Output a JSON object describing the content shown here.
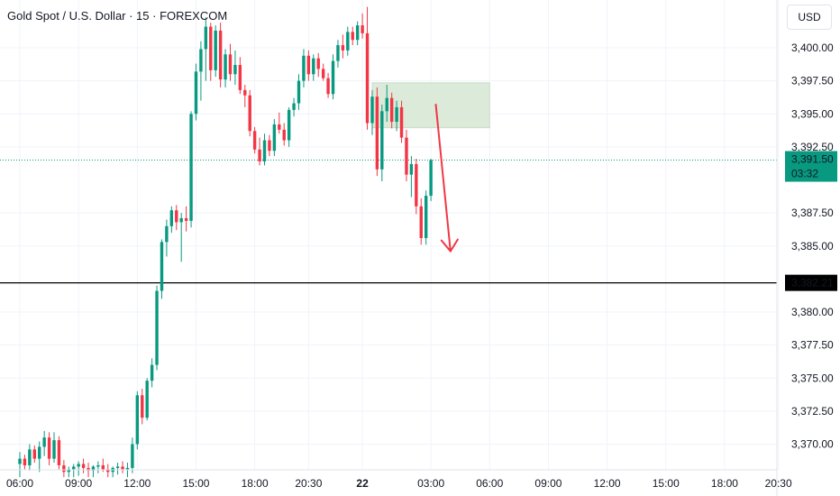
{
  "header": {
    "title": "Gold Spot / U.S. Dollar · 15 · FOREXCOM",
    "currency": "USD"
  },
  "chart_data": {
    "type": "candlestick",
    "title": "Gold Spot / U.S. Dollar · 15 · FOREXCOM",
    "ylim": [
      3367.5,
      3402.3
    ],
    "y_ticks": [
      "3,400.00",
      "3,397.50",
      "3,395.00",
      "3,392.50",
      "3,387.50",
      "3,385.00",
      "3,380.00",
      "3,377.50",
      "3,375.00",
      "3,372.50",
      "3,370.00"
    ],
    "y_tick_values": [
      3400,
      3397.5,
      3395,
      3392.5,
      3387.5,
      3385,
      3380,
      3377.5,
      3375,
      3372.5,
      3370
    ],
    "x_ticks": [
      "06:00",
      "09:00",
      "12:00",
      "15:00",
      "18:00",
      "20:30",
      "22",
      "03:00",
      "06:00",
      "09:00",
      "12:00",
      "15:00",
      "18:00",
      "20:30"
    ],
    "x_tick_slots": [
      0,
      12,
      24,
      36,
      48,
      59,
      70,
      84,
      96,
      108,
      120,
      132,
      144,
      155
    ],
    "current_price": {
      "label": "3,391.50",
      "countdown": "03:32",
      "value": 3391.5,
      "color": "#089981"
    },
    "horizontal_line": {
      "label": "3,382.21",
      "value": 3382.21
    },
    "zone": {
      "top": 3397.35,
      "bottom": 3393.95,
      "start_slot": 72,
      "end_slot": 96
    },
    "arrow": {
      "from_value": 3395.7,
      "to_value": 3384.6,
      "from_slot": 85,
      "to_slot": 88
    },
    "colors": {
      "up": "#089981",
      "down": "#f23645",
      "zone": "#d6e6d3",
      "arrow": "#f23645"
    },
    "candles": [
      [
        3368.5,
        3369.4,
        3367.5,
        3368.9
      ],
      [
        3368.9,
        3369.2,
        3368.1,
        3368.4
      ],
      [
        3368.4,
        3370.0,
        3368.0,
        3369.6
      ],
      [
        3369.6,
        3369.9,
        3368.6,
        3368.9
      ],
      [
        3368.9,
        3370.2,
        3367.9,
        3369.8
      ],
      [
        3369.8,
        3371.0,
        3369.1,
        3370.5
      ],
      [
        3370.5,
        3370.9,
        3368.4,
        3368.9
      ],
      [
        3368.9,
        3370.9,
        3368.6,
        3370.3
      ],
      [
        3370.3,
        3370.6,
        3368.1,
        3368.4
      ],
      [
        3368.4,
        3368.8,
        3367.5,
        3367.9
      ],
      [
        3367.9,
        3368.3,
        3367.5,
        3368.1
      ],
      [
        3368.1,
        3368.5,
        3367.5,
        3368.3
      ],
      [
        3368.3,
        3368.7,
        3367.6,
        3368.5
      ],
      [
        3368.5,
        3368.9,
        3367.8,
        3368.2
      ],
      [
        3368.2,
        3368.6,
        3367.5,
        3368.0
      ],
      [
        3368.0,
        3368.4,
        3367.5,
        3368.3
      ],
      [
        3368.3,
        3368.7,
        3367.8,
        3368.4
      ],
      [
        3368.4,
        3368.9,
        3367.9,
        3368.1
      ],
      [
        3368.1,
        3368.5,
        3367.5,
        3367.9
      ],
      [
        3367.9,
        3368.3,
        3367.5,
        3368.2
      ],
      [
        3368.2,
        3368.6,
        3367.7,
        3368.3
      ],
      [
        3368.3,
        3368.7,
        3367.8,
        3368.1
      ],
      [
        3368.1,
        3368.6,
        3367.5,
        3368.2
      ],
      [
        3368.2,
        3370.5,
        3367.8,
        3370.0
      ],
      [
        3370.0,
        3374.0,
        3369.6,
        3373.7
      ],
      [
        3373.7,
        3374.2,
        3371.5,
        3372.0
      ],
      [
        3372.0,
        3375.0,
        3371.8,
        3374.8
      ],
      [
        3374.8,
        3376.5,
        3374.3,
        3376.0
      ],
      [
        3376.0,
        3382.0,
        3375.6,
        3381.6
      ],
      [
        3381.6,
        3385.5,
        3381.0,
        3385.3
      ],
      [
        3385.3,
        3387.0,
        3384.2,
        3386.5
      ],
      [
        3386.5,
        3388.0,
        3386.0,
        3387.7
      ],
      [
        3387.7,
        3388.1,
        3386.2,
        3386.8
      ],
      [
        3386.8,
        3387.5,
        3383.8,
        3387.1
      ],
      [
        3387.1,
        3388.0,
        3386.1,
        3386.9
      ],
      [
        3386.9,
        3395.2,
        3386.4,
        3395.0
      ],
      [
        3395.0,
        3398.8,
        3394.5,
        3398.2
      ],
      [
        3398.2,
        3400.5,
        3396.0,
        3399.9
      ],
      [
        3399.9,
        3402.3,
        3397.5,
        3401.6
      ],
      [
        3401.6,
        3401.9,
        3397.5,
        3398.3
      ],
      [
        3398.3,
        3401.7,
        3397.8,
        3401.3
      ],
      [
        3401.3,
        3401.9,
        3397.0,
        3397.6
      ],
      [
        3397.6,
        3399.9,
        3397.0,
        3399.5
      ],
      [
        3399.5,
        3400.3,
        3397.5,
        3398.0
      ],
      [
        3398.0,
        3399.8,
        3397.2,
        3398.7
      ],
      [
        3398.7,
        3399.3,
        3396.5,
        3396.8
      ],
      [
        3396.8,
        3397.2,
        3395.5,
        3396.4
      ],
      [
        3396.4,
        3396.8,
        3393.3,
        3393.7
      ],
      [
        3393.7,
        3394.0,
        3392.0,
        3392.3
      ],
      [
        3392.3,
        3393.2,
        3391.1,
        3391.4
      ],
      [
        3391.4,
        3393.5,
        3391.1,
        3393.0
      ],
      [
        3393.0,
        3393.4,
        3391.8,
        3392.2
      ],
      [
        3392.2,
        3394.6,
        3391.8,
        3394.2
      ],
      [
        3394.2,
        3395.1,
        3393.5,
        3393.8
      ],
      [
        3393.8,
        3394.3,
        3392.6,
        3393.0
      ],
      [
        3393.0,
        3395.5,
        3392.5,
        3395.3
      ],
      [
        3395.3,
        3396.2,
        3394.8,
        3395.8
      ],
      [
        3395.8,
        3398.0,
        3395.3,
        3397.5
      ],
      [
        3397.5,
        3399.9,
        3397.0,
        3399.4
      ],
      [
        3399.4,
        3399.8,
        3397.5,
        3398.0
      ],
      [
        3398.0,
        3399.5,
        3397.5,
        3399.2
      ],
      [
        3399.2,
        3399.6,
        3397.8,
        3398.4
      ],
      [
        3398.4,
        3398.8,
        3397.5,
        3397.7
      ],
      [
        3397.7,
        3398.1,
        3396.2,
        3396.5
      ],
      [
        3396.5,
        3399.5,
        3396.1,
        3399.0
      ],
      [
        3399.0,
        3400.6,
        3398.5,
        3400.2
      ],
      [
        3400.2,
        3401.0,
        3399.2,
        3399.8
      ],
      [
        3399.8,
        3401.6,
        3399.4,
        3401.2
      ],
      [
        3401.2,
        3401.6,
        3400.2,
        3400.6
      ],
      [
        3400.6,
        3402.0,
        3400.2,
        3401.7
      ],
      [
        3401.7,
        3402.6,
        3400.7,
        3401.1
      ],
      [
        3401.1,
        3403.1,
        3393.8,
        3394.3
      ],
      [
        3394.3,
        3396.8,
        3393.4,
        3396.3
      ],
      [
        3396.3,
        3397.0,
        3390.3,
        3390.8
      ],
      [
        3390.8,
        3395.7,
        3389.9,
        3395.2
      ],
      [
        3395.2,
        3397.2,
        3394.4,
        3396.2
      ],
      [
        3396.2,
        3396.6,
        3393.9,
        3394.4
      ],
      [
        3394.4,
        3396.0,
        3393.7,
        3395.5
      ],
      [
        3395.5,
        3396.0,
        3392.8,
        3393.2
      ],
      [
        3393.2,
        3393.8,
        3389.9,
        3390.4
      ],
      [
        3390.4,
        3391.8,
        3388.7,
        3391.2
      ],
      [
        3391.2,
        3391.6,
        3387.4,
        3388.0
      ],
      [
        3388.0,
        3388.6,
        3385.1,
        3385.6
      ],
      [
        3385.6,
        3389.2,
        3385.1,
        3388.8
      ],
      [
        3388.8,
        3391.6,
        3388.4,
        3391.5
      ]
    ]
  }
}
